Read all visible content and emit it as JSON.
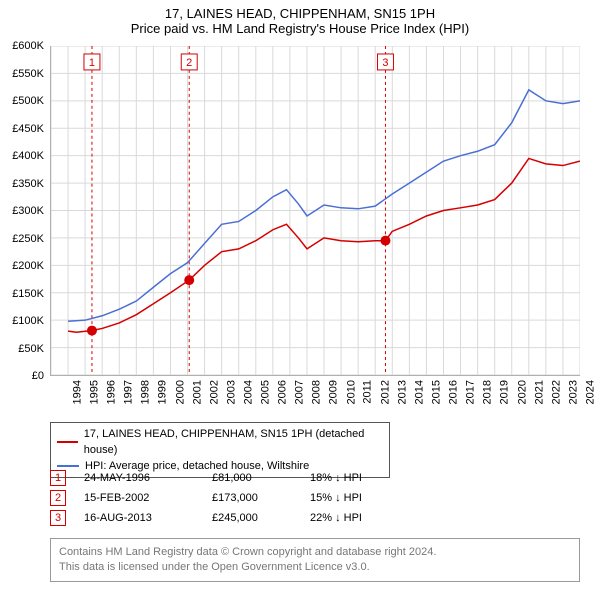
{
  "title_line1": "17, LAINES HEAD, CHIPPENHAM, SN15 1PH",
  "title_line2": "Price paid vs. HM Land Registry's House Price Index (HPI)",
  "chart": {
    "type": "line",
    "background_color": "#ffffff",
    "grid_color": "#d9d9d9",
    "axis_color": "#b0b0b0",
    "x_min": 1994,
    "x_max": 2025,
    "x_ticks": [
      1994,
      1995,
      1996,
      1997,
      1998,
      1999,
      2000,
      2001,
      2002,
      2003,
      2004,
      2005,
      2006,
      2007,
      2008,
      2009,
      2010,
      2011,
      2012,
      2013,
      2014,
      2015,
      2016,
      2017,
      2018,
      2019,
      2020,
      2021,
      2022,
      2023,
      2024,
      2025
    ],
    "y_min": 0,
    "y_max": 600000,
    "y_ticks": [
      0,
      50000,
      100000,
      150000,
      200000,
      250000,
      300000,
      350000,
      400000,
      450000,
      500000,
      550000,
      600000
    ],
    "y_tick_labels": [
      "£0",
      "£50K",
      "£100K",
      "£150K",
      "£200K",
      "£250K",
      "£300K",
      "£350K",
      "£400K",
      "£450K",
      "£500K",
      "£550K",
      "£600K"
    ],
    "x_fontsize": 11,
    "y_fontsize": 11,
    "series": [
      {
        "name": "property",
        "label": "17, LAINES HEAD, CHIPPENHAM, SN15 1PH (detached house)",
        "color": "#d40000",
        "line_width": 1.5,
        "x": [
          1995,
          1995.5,
          1996.4,
          1997,
          1998,
          1999,
          2000,
          2001,
          2002.1,
          2003,
          2004,
          2005,
          2006,
          2007,
          2007.8,
          2008.5,
          2009,
          2010,
          2011,
          2012,
          2013,
          2013.6,
          2014,
          2015,
          2016,
          2017,
          2018,
          2019,
          2020,
          2021,
          2022,
          2023,
          2024,
          2025
        ],
        "y": [
          80000,
          78000,
          81000,
          85000,
          95000,
          110000,
          130000,
          150000,
          173000,
          200000,
          225000,
          230000,
          245000,
          265000,
          275000,
          250000,
          230000,
          250000,
          245000,
          243000,
          245000,
          245000,
          262000,
          275000,
          290000,
          300000,
          305000,
          310000,
          320000,
          350000,
          395000,
          385000,
          382000,
          390000
        ]
      },
      {
        "name": "hpi",
        "label": "HPI: Average price, detached house, Wiltshire",
        "color": "#4a6fd4",
        "line_width": 1.5,
        "x": [
          1995,
          1996,
          1997,
          1998,
          1999,
          2000,
          2001,
          2002,
          2003,
          2004,
          2005,
          2006,
          2007,
          2007.8,
          2008.5,
          2009,
          2010,
          2011,
          2012,
          2013,
          2014,
          2015,
          2016,
          2017,
          2018,
          2019,
          2020,
          2021,
          2022,
          2023,
          2024,
          2025
        ],
        "y": [
          98000,
          100000,
          108000,
          120000,
          135000,
          160000,
          185000,
          205000,
          240000,
          275000,
          280000,
          300000,
          325000,
          338000,
          312000,
          290000,
          310000,
          305000,
          303000,
          308000,
          330000,
          350000,
          370000,
          390000,
          400000,
          408000,
          420000,
          460000,
          520000,
          500000,
          495000,
          500000
        ]
      }
    ],
    "event_markers": {
      "color": "#d40000",
      "dash_color": "#d40000",
      "dot_radius": 5,
      "box_border": "#d40000",
      "items": [
        {
          "n": "1",
          "x": 1996.4,
          "y": 81000
        },
        {
          "n": "2",
          "x": 2002.1,
          "y": 173000
        },
        {
          "n": "3",
          "x": 2013.6,
          "y": 245000
        }
      ]
    }
  },
  "legend": {
    "series1_label": "17, LAINES HEAD, CHIPPENHAM, SN15 1PH (detached house)",
    "series2_label": "HPI: Average price, detached house, Wiltshire"
  },
  "events": [
    {
      "n": "1",
      "date": "24-MAY-1996",
      "price": "£81,000",
      "diff": "18% ↓ HPI"
    },
    {
      "n": "2",
      "date": "15-FEB-2002",
      "price": "£173,000",
      "diff": "15% ↓ HPI"
    },
    {
      "n": "3",
      "date": "16-AUG-2013",
      "price": "£245,000",
      "diff": "22% ↓ HPI"
    }
  ],
  "attribution_line1": "Contains HM Land Registry data © Crown copyright and database right 2024.",
  "attribution_line2": "This data is licensed under the Open Government Licence v3.0."
}
